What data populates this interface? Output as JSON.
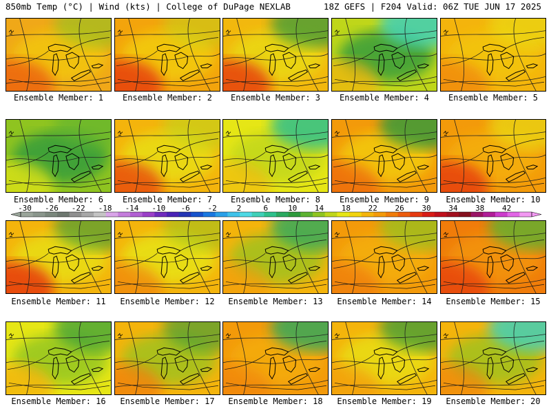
{
  "header": {
    "left": "850mb Temp (°C) | Wind (kts) | College of DuPage NEXLAB",
    "right": "18Z GEFS | F204 Valid: 06Z TUE JUN 17 2025"
  },
  "colorbar": {
    "ticks": [
      "-30",
      "-26",
      "-22",
      "-18",
      "-14",
      "-10",
      "-6",
      "-2",
      "2",
      "6",
      "10",
      "14",
      "18",
      "22",
      "26",
      "30",
      "34",
      "38",
      "42"
    ],
    "colors": [
      "#9aa59a",
      "#8a968c",
      "#7a877c",
      "#6d776f",
      "#8f8f8f",
      "#a8a8a8",
      "#c4c4c4",
      "#d9a4e8",
      "#c47ddc",
      "#b15fd3",
      "#9b3fc8",
      "#6f2bbd",
      "#4a23b6",
      "#2436b4",
      "#1753cc",
      "#1a78e0",
      "#2aa0e8",
      "#3fc2ea",
      "#4ed9e4",
      "#3fd0b8",
      "#2ec08c",
      "#2aa960",
      "#2d9a3c",
      "#5db232",
      "#8fc420",
      "#bfd61a",
      "#e6e616",
      "#f2d40e",
      "#f4b40c",
      "#f39a0a",
      "#f07c0a",
      "#ec5c0c",
      "#e63a10",
      "#d81c16",
      "#c0101c",
      "#a2101e",
      "#84101e",
      "#9a1466",
      "#b01e98",
      "#cc3ccc",
      "#e266e6",
      "#f299f2"
    ]
  },
  "panels": [
    {
      "label": "Ensemble Member: 1",
      "fill": "#f0a818",
      "sub": [
        {
          "c": "#f2c80e",
          "a": 0.8
        },
        {
          "c": "#ec5c0c",
          "a": 0.75
        },
        {
          "c": "#8fc420",
          "a": 0.6
        }
      ]
    },
    {
      "label": "Ensemble Member: 2",
      "fill": "#f3a40c",
      "sub": [
        {
          "c": "#f2d40e",
          "a": 0.7
        },
        {
          "c": "#e63a10",
          "a": 0.8
        },
        {
          "c": "#bfd61a",
          "a": 0.5
        }
      ]
    },
    {
      "label": "Ensemble Member: 3",
      "fill": "#f2b80e",
      "sub": [
        {
          "c": "#e6e616",
          "a": 0.6
        },
        {
          "c": "#e63a10",
          "a": 0.8
        },
        {
          "c": "#2d9a3c",
          "a": 0.7
        }
      ]
    },
    {
      "label": "Ensemble Member: 4",
      "fill": "#bfd61a",
      "sub": [
        {
          "c": "#2d9a3c",
          "a": 0.8
        },
        {
          "c": "#f4b40c",
          "a": 0.7
        },
        {
          "c": "#3fd0b8",
          "a": 0.85
        }
      ]
    },
    {
      "label": "Ensemble Member: 5",
      "fill": "#f4b40c",
      "sub": [
        {
          "c": "#f2c80e",
          "a": 0.7
        },
        {
          "c": "#f07c0a",
          "a": 0.6
        },
        {
          "c": "#e6e616",
          "a": 0.5
        }
      ]
    },
    {
      "label": "Ensemble Member: 6",
      "fill": "#8fc420",
      "sub": [
        {
          "c": "#2d9a3c",
          "a": 0.8
        },
        {
          "c": "#e6e616",
          "a": 0.7
        },
        {
          "c": "#5db232",
          "a": 0.6
        }
      ]
    },
    {
      "label": "Ensemble Member: 7",
      "fill": "#f4b40c",
      "sub": [
        {
          "c": "#e6e616",
          "a": 0.7
        },
        {
          "c": "#e63a10",
          "a": 0.7
        },
        {
          "c": "#bfd61a",
          "a": 0.6
        }
      ]
    },
    {
      "label": "Ensemble Member: 8",
      "fill": "#e6e616",
      "sub": [
        {
          "c": "#bfd61a",
          "a": 0.8
        },
        {
          "c": "#f4b40c",
          "a": 0.6
        },
        {
          "c": "#2ec08c",
          "a": 0.85
        }
      ]
    },
    {
      "label": "Ensemble Member: 9",
      "fill": "#f39a0a",
      "sub": [
        {
          "c": "#f2d40e",
          "a": 0.7
        },
        {
          "c": "#ec5c0c",
          "a": 0.6
        },
        {
          "c": "#2d9a3c",
          "a": 0.8
        }
      ]
    },
    {
      "label": "Ensemble Member: 10",
      "fill": "#f39a0a",
      "sub": [
        {
          "c": "#f4b40c",
          "a": 0.7
        },
        {
          "c": "#e63a10",
          "a": 0.8
        },
        {
          "c": "#e6e616",
          "a": 0.6
        }
      ]
    },
    {
      "label": "Ensemble Member: 11",
      "fill": "#f4b40c",
      "sub": [
        {
          "c": "#e6e616",
          "a": 0.7
        },
        {
          "c": "#e63a10",
          "a": 0.85
        },
        {
          "c": "#2d9a3c",
          "a": 0.6
        }
      ]
    },
    {
      "label": "Ensemble Member: 12",
      "fill": "#f4b40c",
      "sub": [
        {
          "c": "#e6e616",
          "a": 0.8
        },
        {
          "c": "#f07c0a",
          "a": 0.6
        },
        {
          "c": "#8fc420",
          "a": 0.5
        }
      ]
    },
    {
      "label": "Ensemble Member: 13",
      "fill": "#f4b40c",
      "sub": [
        {
          "c": "#8fc420",
          "a": 0.7
        },
        {
          "c": "#f39a0a",
          "a": 0.6
        },
        {
          "c": "#2aa960",
          "a": 0.8
        }
      ]
    },
    {
      "label": "Ensemble Member: 14",
      "fill": "#f39a0a",
      "sub": [
        {
          "c": "#f4b40c",
          "a": 0.7
        },
        {
          "c": "#f07c0a",
          "a": 0.7
        },
        {
          "c": "#8fc420",
          "a": 0.7
        }
      ]
    },
    {
      "label": "Ensemble Member: 15",
      "fill": "#f07c0a",
      "sub": [
        {
          "c": "#f39a0a",
          "a": 0.7
        },
        {
          "c": "#e63a10",
          "a": 0.7
        },
        {
          "c": "#5db232",
          "a": 0.8
        }
      ]
    },
    {
      "label": "Ensemble Member: 16",
      "fill": "#e6e616",
      "sub": [
        {
          "c": "#8fc420",
          "a": 0.8
        },
        {
          "c": "#f4b40c",
          "a": 0.8
        },
        {
          "c": "#2d9a3c",
          "a": 0.7
        }
      ]
    },
    {
      "label": "Ensemble Member: 17",
      "fill": "#f4b40c",
      "sub": [
        {
          "c": "#8fc420",
          "a": 0.7
        },
        {
          "c": "#f07c0a",
          "a": 0.7
        },
        {
          "c": "#2d9a3c",
          "a": 0.6
        }
      ]
    },
    {
      "label": "Ensemble Member: 18",
      "fill": "#f39a0a",
      "sub": [
        {
          "c": "#f4b40c",
          "a": 0.6
        },
        {
          "c": "#f07c0a",
          "a": 0.5
        },
        {
          "c": "#2aa960",
          "a": 0.8
        }
      ]
    },
    {
      "label": "Ensemble Member: 19",
      "fill": "#f4b40c",
      "sub": [
        {
          "c": "#e6e616",
          "a": 0.7
        },
        {
          "c": "#f39a0a",
          "a": 0.6
        },
        {
          "c": "#2d9a3c",
          "a": 0.7
        }
      ]
    },
    {
      "label": "Ensemble Member: 20",
      "fill": "#f4b40c",
      "sub": [
        {
          "c": "#8fc420",
          "a": 0.7
        },
        {
          "c": "#f07c0a",
          "a": 0.6
        },
        {
          "c": "#3fd0b8",
          "a": 0.85
        }
      ]
    }
  ]
}
